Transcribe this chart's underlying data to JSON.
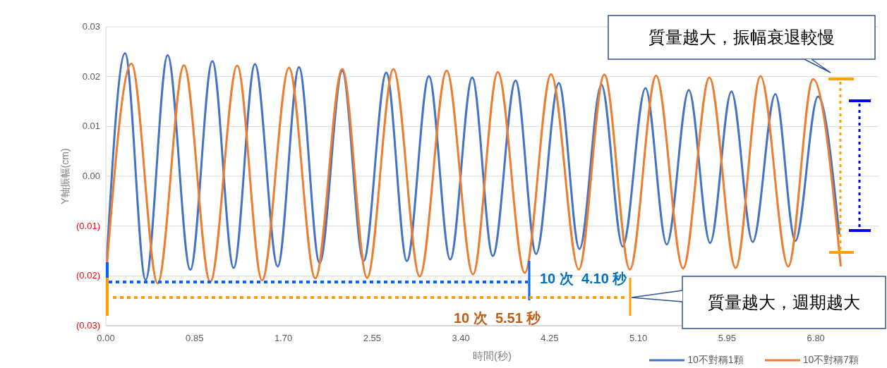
{
  "chart_data": {
    "type": "line",
    "xlabel": "時間(秒)",
    "ylabel": "Y軸振幅(cm)",
    "xlim": [
      0,
      7.4
    ],
    "xticks": [
      {
        "value": 0,
        "label": "0.00"
      },
      0.85,
      {
        "value": 1.7,
        "label": "1.70"
      },
      2.55,
      {
        "value": 3.4,
        "label": "3.40"
      },
      4.25,
      {
        "value": 5.1,
        "label": "5.10"
      },
      5.95,
      {
        "value": 6.8,
        "label": "6.80"
      }
    ],
    "ylim": [
      -0.03,
      0.03
    ],
    "yticks": [
      {
        "value": -0.03,
        "label": "(0.03)"
      },
      {
        "value": -0.02,
        "label": "(0.02)"
      },
      {
        "value": -0.01,
        "label": "(0.01)"
      },
      {
        "value": 0,
        "label": "0.00"
      },
      0.01,
      0.02,
      0.03
    ],
    "grid": "y",
    "legend": "bottom right",
    "marker": "none",
    "line_style": "solid",
    "annotations": [
      "質量越大，振幅衰退較慢",
      "質量越大，週期越大",
      "10 次  4.10 秒",
      "10 次  5.51 秒"
    ],
    "series": [
      {
        "name": "10不對稱1顆",
        "color": "#4472c4",
        "x": [
          0,
          0.184,
          0.381,
          0.592,
          0.809,
          1.02,
          1.224,
          1.428,
          1.646,
          1.85,
          2.047,
          2.264,
          2.468,
          2.686,
          2.883,
          3.094,
          3.298,
          3.509,
          3.706,
          3.924,
          4.121,
          4.338,
          4.536,
          4.746,
          4.95,
          5.168,
          5.372,
          5.583,
          5.787,
          5.991,
          6.195,
          6.412,
          6.603,
          6.82,
          7.024
        ],
        "values": [
          -0.0198,
          0.0247,
          -0.0208,
          0.0243,
          -0.0188,
          0.0231,
          -0.0184,
          0.0225,
          -0.0181,
          0.0219,
          -0.0174,
          0.0212,
          -0.017,
          0.0208,
          -0.017,
          0.0201,
          -0.0167,
          0.0198,
          -0.016,
          0.0192,
          -0.0156,
          0.0187,
          -0.0146,
          0.0184,
          -0.0141,
          0.0177,
          -0.0137,
          0.0173,
          -0.0134,
          0.017,
          -0.0132,
          0.0165,
          -0.013,
          0.016,
          -0.0117
        ]
      },
      {
        "name": "10不對稱7顆",
        "color": "#ed7d31",
        "x": [
          0,
          0.245,
          0.496,
          0.748,
          1.0,
          1.258,
          1.496,
          1.754,
          2.006,
          2.264,
          2.502,
          2.754,
          3.006,
          3.264,
          3.516,
          3.754,
          4.012,
          4.264,
          4.529,
          4.774,
          5.018,
          5.27,
          5.528,
          5.78,
          6.032,
          6.27,
          6.535,
          6.773,
          7.038
        ],
        "values": [
          -0.0205,
          0.0226,
          -0.0215,
          0.0223,
          -0.0212,
          0.0222,
          -0.0209,
          0.0218,
          -0.0205,
          0.0215,
          -0.0204,
          0.0215,
          -0.0201,
          0.0212,
          -0.0197,
          0.0209,
          -0.0194,
          0.0205,
          -0.0187,
          0.0204,
          -0.0187,
          0.0202,
          -0.0185,
          0.0198,
          -0.0184,
          0.0201,
          -0.0181,
          0.0195,
          -0.0181
        ]
      }
    ]
  }
}
